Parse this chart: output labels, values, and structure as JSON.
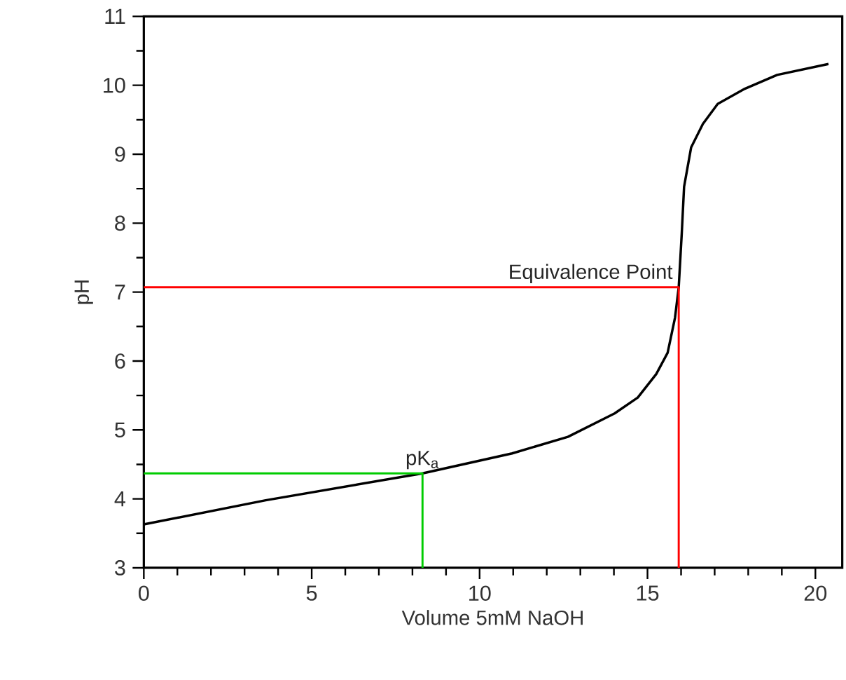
{
  "chart_data": {
    "type": "line",
    "xlabel": "Volume 5mM NaOH",
    "ylabel": "pH",
    "xlim": [
      0,
      20.8
    ],
    "ylim": [
      3,
      11
    ],
    "xticks": [
      0,
      5,
      10,
      15,
      20
    ],
    "yticks": [
      3,
      4,
      5,
      6,
      7,
      8,
      9,
      10,
      11
    ],
    "grid": false,
    "marker": "none",
    "line_style": "solid",
    "series": [
      {
        "color": "#000000",
        "x": [
          0,
          3.63,
          8.3,
          10.97,
          12.63,
          14.02,
          14.71,
          15.26,
          15.6,
          15.82,
          15.93,
          16.02,
          16.09,
          16.3,
          16.65,
          17.09,
          17.9,
          18.86,
          20.39
        ],
        "values": [
          3.63,
          3.98,
          4.37,
          4.66,
          4.9,
          5.24,
          5.47,
          5.81,
          6.12,
          6.63,
          7.07,
          7.85,
          8.53,
          9.1,
          9.44,
          9.73,
          9.95,
          10.15,
          10.31
        ]
      },
      {
        "color": "#ff0000",
        "x": [
          0,
          15.93,
          15.93
        ],
        "values": [
          7.07,
          7.07,
          3
        ]
      },
      {
        "color": "#00cc00",
        "x": [
          0,
          8.3,
          8.3
        ],
        "values": [
          4.37,
          4.37,
          3
        ]
      }
    ],
    "annotations": [
      {
        "text": "Equivalence Point",
        "x": 15.93,
        "y": 7.07
      },
      {
        "text": "pK$_{a}$",
        "x": 8.3,
        "y": 4.37
      }
    ]
  }
}
